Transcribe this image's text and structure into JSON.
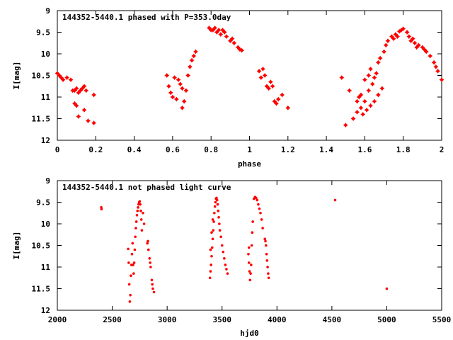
{
  "chart_data": [
    {
      "type": "scatter",
      "title": "144352-5440.1 phased with P=353.0day",
      "xlabel": "phase",
      "ylabel": "I[mag]",
      "xlim": [
        0,
        2
      ],
      "ylim": [
        9,
        12
      ],
      "y_inverted": true,
      "xticks": [
        "0",
        "0.2",
        "0.4",
        "0.6",
        "0.8",
        "1",
        "1.2",
        "1.4",
        "1.6",
        "1.8",
        "2"
      ],
      "yticks": [
        "9",
        "9.5",
        "10",
        "10.5",
        "11",
        "11.5",
        "12"
      ],
      "grid": false,
      "marker": "filled-star",
      "color": "#ff0000",
      "series": [
        {
          "points": [
            [
              0.0,
              10.45
            ],
            [
              0.01,
              10.5
            ],
            [
              0.02,
              10.55
            ],
            [
              0.03,
              10.6
            ],
            [
              0.05,
              10.55
            ],
            [
              0.07,
              10.6
            ],
            [
              0.08,
              10.85
            ],
            [
              0.09,
              10.85
            ],
            [
              0.1,
              10.8
            ],
            [
              0.11,
              10.9
            ],
            [
              0.12,
              10.85
            ],
            [
              0.13,
              10.8
            ],
            [
              0.14,
              10.75
            ],
            [
              0.15,
              10.85
            ],
            [
              0.09,
              11.15
            ],
            [
              0.1,
              11.2
            ],
            [
              0.11,
              11.45
            ],
            [
              0.14,
              11.3
            ],
            [
              0.16,
              11.55
            ],
            [
              0.19,
              11.6
            ],
            [
              0.19,
              10.95
            ],
            [
              0.57,
              10.5
            ],
            [
              0.58,
              10.75
            ],
            [
              0.59,
              10.9
            ],
            [
              0.6,
              11.0
            ],
            [
              0.61,
              10.55
            ],
            [
              0.62,
              11.05
            ],
            [
              0.63,
              10.6
            ],
            [
              0.64,
              10.7
            ],
            [
              0.65,
              10.8
            ],
            [
              0.65,
              11.25
            ],
            [
              0.66,
              11.1
            ],
            [
              0.67,
              10.85
            ],
            [
              0.68,
              10.5
            ],
            [
              0.69,
              10.3
            ],
            [
              0.7,
              10.15
            ],
            [
              0.71,
              10.05
            ],
            [
              0.72,
              9.95
            ],
            [
              0.79,
              9.4
            ],
            [
              0.8,
              9.45
            ],
            [
              0.81,
              9.45
            ],
            [
              0.82,
              9.4
            ],
            [
              0.83,
              9.5
            ],
            [
              0.84,
              9.45
            ],
            [
              0.85,
              9.55
            ],
            [
              0.86,
              9.45
            ],
            [
              0.87,
              9.5
            ],
            [
              0.88,
              9.6
            ],
            [
              0.9,
              9.7
            ],
            [
              0.91,
              9.65
            ],
            [
              0.92,
              9.75
            ],
            [
              0.94,
              9.85
            ],
            [
              0.95,
              9.9
            ],
            [
              0.96,
              9.92
            ],
            [
              1.05,
              10.4
            ],
            [
              1.06,
              10.55
            ],
            [
              1.07,
              10.35
            ],
            [
              1.08,
              10.5
            ],
            [
              1.09,
              10.75
            ],
            [
              1.1,
              10.8
            ],
            [
              1.11,
              10.65
            ],
            [
              1.12,
              10.75
            ],
            [
              1.13,
              11.1
            ],
            [
              1.14,
              11.15
            ],
            [
              1.15,
              11.05
            ],
            [
              1.17,
              10.95
            ],
            [
              1.2,
              11.25
            ],
            [
              1.48,
              10.55
            ],
            [
              1.5,
              11.65
            ],
            [
              1.52,
              10.85
            ],
            [
              1.54,
              11.5
            ],
            [
              1.56,
              11.35
            ],
            [
              1.56,
              11.1
            ],
            [
              1.57,
              11.0
            ],
            [
              1.58,
              10.95
            ],
            [
              1.58,
              11.25
            ],
            [
              1.6,
              11.1
            ],
            [
              1.6,
              10.6
            ],
            [
              1.62,
              10.85
            ],
            [
              1.62,
              10.5
            ],
            [
              1.63,
              10.35
            ],
            [
              1.64,
              10.7
            ],
            [
              1.65,
              10.55
            ],
            [
              1.66,
              10.45
            ],
            [
              1.67,
              10.2
            ],
            [
              1.68,
              10.1
            ],
            [
              1.7,
              9.95
            ],
            [
              1.71,
              9.8
            ],
            [
              1.72,
              9.7
            ],
            [
              1.74,
              9.6
            ],
            [
              1.76,
              9.55
            ],
            [
              1.78,
              9.48
            ],
            [
              1.79,
              9.45
            ],
            [
              1.8,
              9.42
            ],
            [
              1.82,
              9.5
            ],
            [
              1.83,
              9.6
            ],
            [
              1.84,
              9.7
            ],
            [
              1.86,
              9.75
            ],
            [
              1.88,
              9.8
            ],
            [
              1.9,
              9.85
            ],
            [
              1.92,
              9.95
            ],
            [
              1.94,
              10.05
            ],
            [
              1.96,
              10.2
            ],
            [
              1.98,
              10.4
            ],
            [
              2.0,
              10.6
            ],
            [
              1.75,
              9.65
            ],
            [
              1.77,
              9.6
            ],
            [
              1.85,
              9.65
            ],
            [
              1.87,
              9.85
            ],
            [
              1.91,
              9.9
            ],
            [
              1.97,
              10.3
            ],
            [
              1.59,
              11.4
            ],
            [
              1.61,
              11.3
            ],
            [
              1.63,
              11.2
            ],
            [
              1.65,
              11.1
            ],
            [
              1.67,
              10.95
            ],
            [
              1.69,
              10.8
            ]
          ]
        }
      ]
    },
    {
      "type": "scatter",
      "title": "144352-5440.1 not phased light curve",
      "xlabel": "hjd0",
      "ylabel": "I[mag]",
      "xlim": [
        2000,
        5500
      ],
      "ylim": [
        9,
        12
      ],
      "y_inverted": true,
      "xticks": [
        "2000",
        "2500",
        "3000",
        "3500",
        "4000",
        "4500",
        "5000",
        "5500"
      ],
      "yticks": [
        "9",
        "9.5",
        "10",
        "10.5",
        "11",
        "11.5",
        "12"
      ],
      "grid": false,
      "marker": "dot",
      "color": "#ff0000",
      "series": [
        {
          "points": [
            [
              2400,
              9.62
            ],
            [
              2402,
              9.66
            ],
            [
              2645,
              10.58
            ],
            [
              2650,
              10.9
            ],
            [
              2655,
              11.4
            ],
            [
              2660,
              11.8
            ],
            [
              2665,
              11.65
            ],
            [
              2670,
              11.2
            ],
            [
              2675,
              10.95
            ],
            [
              2680,
              10.7
            ],
            [
              2685,
              10.45
            ],
            [
              2690,
              10.95
            ],
            [
              2695,
              11.15
            ],
            [
              2700,
              10.9
            ],
            [
              2705,
              10.6
            ],
            [
              2710,
              10.3
            ],
            [
              2715,
              10.1
            ],
            [
              2720,
              9.95
            ],
            [
              2725,
              9.8
            ],
            [
              2730,
              9.7
            ],
            [
              2735,
              9.62
            ],
            [
              2740,
              9.55
            ],
            [
              2745,
              9.5
            ],
            [
              2750,
              9.48
            ],
            [
              2755,
              9.55
            ],
            [
              2760,
              9.7
            ],
            [
              2765,
              9.9
            ],
            [
              2770,
              10.15
            ],
            [
              2780,
              9.75
            ],
            [
              2790,
              10.0
            ],
            [
              2820,
              10.45
            ],
            [
              2830,
              10.6
            ],
            [
              2840,
              10.8
            ],
            [
              2850,
              11.0
            ],
            [
              2860,
              11.3
            ],
            [
              2870,
              11.5
            ],
            [
              2880,
              11.58
            ],
            [
              2825,
              10.4
            ],
            [
              2845,
              10.9
            ],
            [
              2865,
              11.4
            ],
            [
              3390,
              11.25
            ],
            [
              3395,
              11.1
            ],
            [
              3400,
              10.95
            ],
            [
              3405,
              10.75
            ],
            [
              3410,
              10.55
            ],
            [
              3415,
              10.35
            ],
            [
              3420,
              10.15
            ],
            [
              3425,
              9.95
            ],
            [
              3430,
              9.75
            ],
            [
              3435,
              9.6
            ],
            [
              3440,
              9.5
            ],
            [
              3445,
              9.42
            ],
            [
              3450,
              9.4
            ],
            [
              3455,
              9.45
            ],
            [
              3460,
              9.55
            ],
            [
              3465,
              9.7
            ],
            [
              3470,
              9.85
            ],
            [
              3475,
              10.0
            ],
            [
              3480,
              10.15
            ],
            [
              3490,
              10.3
            ],
            [
              3500,
              10.5
            ],
            [
              3510,
              10.65
            ],
            [
              3520,
              10.8
            ],
            [
              3530,
              10.95
            ],
            [
              3540,
              11.05
            ],
            [
              3550,
              11.15
            ],
            [
              3395,
              10.6
            ],
            [
              3405,
              10.2
            ],
            [
              3415,
              9.9
            ],
            [
              3740,
              10.7
            ],
            [
              3745,
              10.9
            ],
            [
              3750,
              11.1
            ],
            [
              3755,
              11.3
            ],
            [
              3760,
              11.15
            ],
            [
              3765,
              10.95
            ],
            [
              3770,
              10.5
            ],
            [
              3775,
              10.2
            ],
            [
              3780,
              9.95
            ],
            [
              3745,
              10.55
            ],
            [
              3790,
              9.42
            ],
            [
              3800,
              9.38
            ],
            [
              3810,
              9.4
            ],
            [
              3820,
              9.45
            ],
            [
              3830,
              9.55
            ],
            [
              3840,
              9.65
            ],
            [
              3850,
              9.75
            ],
            [
              3860,
              9.9
            ],
            [
              3870,
              10.1
            ],
            [
              3890,
              10.35
            ],
            [
              3900,
              10.5
            ],
            [
              3905,
              10.7
            ],
            [
              3910,
              10.85
            ],
            [
              3915,
              11.0
            ],
            [
              3920,
              11.15
            ],
            [
              3925,
              11.25
            ],
            [
              3895,
              10.4
            ],
            [
              4530,
              9.45
            ],
            [
              5000,
              11.5
            ]
          ]
        }
      ]
    }
  ]
}
